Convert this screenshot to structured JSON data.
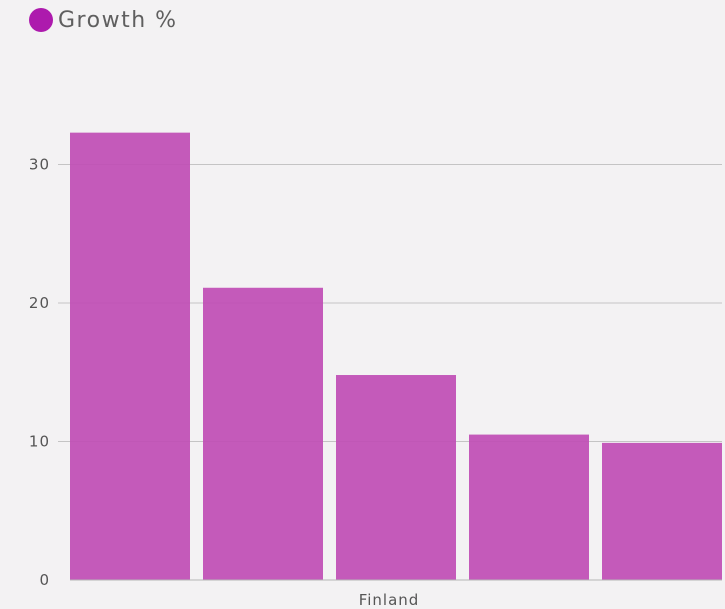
{
  "chart_data": {
    "type": "bar",
    "legend": [
      {
        "label": "Growth %",
        "color": "#ad1aad"
      }
    ],
    "legend_position": "top-left",
    "series": [
      {
        "name": "Growth %",
        "color": "#c04fb5",
        "values": [
          32.3,
          21.1,
          14.8,
          10.5,
          9.9
        ]
      }
    ],
    "category_label": "Finland",
    "ylim": [
      0,
      35
    ],
    "yticks": [
      "0",
      "10",
      "20",
      "30"
    ],
    "ytick_values": [
      0,
      10,
      20,
      30
    ],
    "grid": true
  }
}
